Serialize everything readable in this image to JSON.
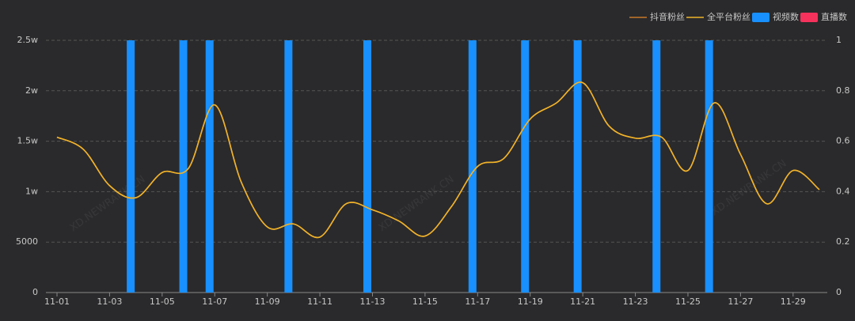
{
  "chart_data": {
    "type": "bar-line",
    "watermark": "XD.NEWRANK.CN",
    "categories": [
      "11-01",
      null,
      "11-03",
      null,
      "11-05",
      null,
      "11-07",
      null,
      "11-09",
      null,
      "11-11",
      null,
      "11-13",
      null,
      "11-15",
      null,
      "11-17",
      null,
      "11-19",
      null,
      "11-21",
      null,
      "11-23",
      null,
      "11-25",
      null,
      "11-27",
      null,
      "11-29",
      null
    ],
    "series": [
      {
        "name": "抖音粉丝",
        "kind": "line",
        "color": "#c8782a",
        "values": [
          15400,
          14200,
          10600,
          9400,
          11900,
          12300,
          18600,
          11000,
          6500,
          6800,
          5500,
          8800,
          8200,
          7100,
          5600,
          8500,
          12500,
          13300,
          17200,
          18800,
          20800,
          16500,
          15300,
          15400,
          12100,
          18800,
          13700,
          8800,
          12100,
          10200
        ]
      },
      {
        "name": "全平台粉丝",
        "kind": "line",
        "color": "#f0b429",
        "values": [
          15400,
          14200,
          10600,
          9400,
          11900,
          12300,
          18600,
          11000,
          6500,
          6800,
          5500,
          8800,
          8200,
          7100,
          5600,
          8500,
          12500,
          13300,
          17200,
          18800,
          20800,
          16500,
          15300,
          15400,
          12100,
          18800,
          13700,
          8800,
          12100,
          10200
        ]
      },
      {
        "name": "视频数",
        "kind": "bar",
        "axis": "y2",
        "color": "#1890ff",
        "values": [
          0,
          0,
          0,
          1,
          0,
          1,
          1,
          0,
          0,
          1,
          0,
          0,
          1,
          0,
          0,
          0,
          1,
          0,
          1,
          0,
          1,
          0,
          0,
          1,
          0,
          1,
          0,
          0,
          0,
          0
        ]
      },
      {
        "name": "直播数",
        "kind": "bar",
        "axis": "y2",
        "color": "#f5325c",
        "values": [
          0,
          0,
          0,
          0,
          0,
          0,
          0,
          0,
          0,
          0,
          0,
          0,
          0,
          0,
          0,
          0,
          0,
          0,
          0,
          0,
          0,
          0,
          0,
          0,
          0,
          0,
          0,
          0,
          0,
          0
        ]
      }
    ],
    "ylim": [
      0,
      25000
    ],
    "yticks": [
      0,
      5000,
      {
        "value": 10000,
        "label": "1w"
      },
      {
        "value": 15000,
        "label": "1.5w"
      },
      {
        "value": 20000,
        "label": "2w"
      },
      {
        "value": 25000,
        "label": "2.5w"
      }
    ],
    "y2lim": [
      0,
      1
    ],
    "y2ticks": [
      0,
      0.2,
      0.4,
      0.6,
      0.8,
      1
    ],
    "grid": true
  }
}
